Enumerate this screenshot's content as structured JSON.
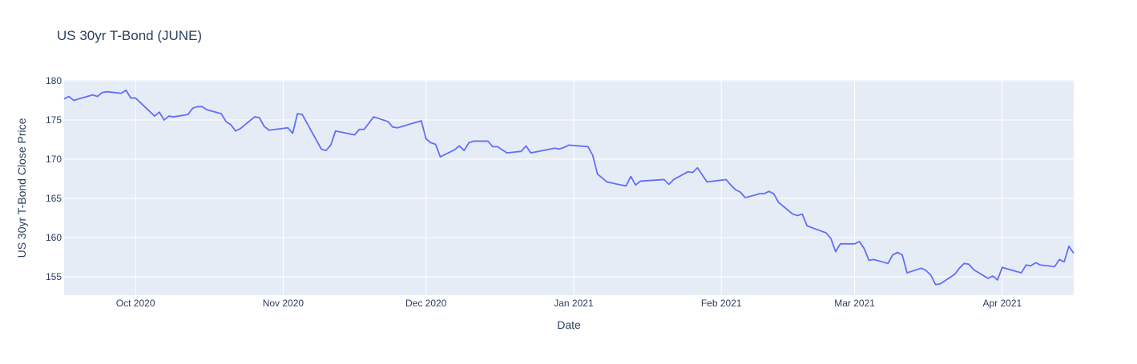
{
  "chart_data": {
    "type": "line",
    "title": "US 30yr T-Bond (JUNE)",
    "x_label": "Date",
    "y_label": "US 30yr T-Bond Close Price",
    "xlim": [
      0,
      212
    ],
    "ylim": [
      152.65,
      180.1
    ],
    "xticks": [
      {
        "value": 15,
        "label": "Oct 2020"
      },
      {
        "value": 46,
        "label": "Nov 2020"
      },
      {
        "value": 76,
        "label": "Dec 2020"
      },
      {
        "value": 107,
        "label": "Jan 2021"
      },
      {
        "value": 138,
        "label": "Feb 2021"
      },
      {
        "value": 166,
        "label": "Mar 2021"
      },
      {
        "value": 197,
        "label": "Apr 2021"
      }
    ],
    "yticks": [
      155,
      160,
      165,
      170,
      175,
      180
    ],
    "grid": true,
    "series": [
      {
        "color": "#636efa",
        "x": [
          0,
          1,
          2,
          6,
          7,
          8,
          9,
          12,
          13,
          14,
          15,
          19,
          20,
          21,
          22,
          23,
          26,
          27,
          28,
          29,
          30,
          33,
          34,
          35,
          36,
          37,
          40,
          41,
          42,
          43,
          47,
          48,
          49,
          50,
          54,
          55,
          56,
          57,
          61,
          62,
          63,
          65,
          68,
          69,
          70,
          75,
          76,
          77,
          78,
          79,
          82,
          83,
          84,
          85,
          86,
          89,
          90,
          91,
          92,
          93,
          96,
          97,
          98,
          103,
          104,
          105,
          106,
          110,
          111,
          112,
          114,
          117,
          118,
          119,
          120,
          121,
          126,
          127,
          128,
          131,
          132,
          133,
          135,
          139,
          140,
          141,
          142,
          143,
          145,
          146,
          147,
          148,
          149,
          150,
          153,
          154,
          155,
          156,
          160,
          161,
          162,
          163,
          166,
          167,
          168,
          169,
          170,
          173,
          174,
          175,
          176,
          177,
          180,
          181,
          182,
          183,
          184,
          187,
          188,
          189,
          190,
          191,
          194,
          195,
          196,
          197,
          201,
          202,
          203,
          204,
          205,
          208,
          209,
          210,
          211,
          212
        ],
        "values": [
          177.7,
          178.0,
          177.5,
          178.2,
          178.0,
          178.5,
          178.6,
          178.4,
          178.8,
          177.8,
          177.8,
          175.5,
          176.0,
          175.0,
          175.5,
          175.4,
          175.7,
          176.5,
          176.7,
          176.7,
          176.3,
          175.8,
          174.8,
          174.4,
          173.6,
          173.9,
          175.4,
          175.3,
          174.2,
          173.7,
          174.0,
          173.3,
          175.8,
          175.7,
          171.3,
          171.1,
          171.8,
          173.6,
          173.1,
          173.8,
          173.8,
          175.4,
          174.8,
          174.1,
          174.0,
          174.9,
          172.6,
          172.1,
          171.9,
          170.3,
          171.2,
          171.7,
          171.1,
          172.1,
          172.3,
          172.3,
          171.6,
          171.6,
          171.2,
          170.8,
          171.0,
          171.7,
          170.8,
          171.4,
          171.3,
          171.5,
          171.8,
          171.6,
          170.5,
          168.1,
          167.1,
          166.7,
          166.6,
          167.8,
          166.7,
          167.2,
          167.4,
          166.8,
          167.4,
          168.4,
          168.3,
          168.9,
          167.1,
          167.4,
          166.7,
          166.1,
          165.8,
          165.1,
          165.4,
          165.6,
          165.6,
          165.9,
          165.6,
          164.5,
          163.0,
          162.8,
          163.0,
          161.5,
          160.6,
          159.9,
          158.2,
          159.2,
          159.2,
          159.5,
          158.6,
          157.1,
          157.2,
          156.7,
          157.8,
          158.1,
          157.8,
          155.5,
          156.1,
          155.8,
          155.2,
          154.0,
          154.1,
          155.3,
          156.1,
          156.7,
          156.6,
          155.9,
          154.8,
          155.1,
          154.6,
          156.2,
          155.5,
          156.5,
          156.4,
          156.8,
          156.5,
          156.3,
          157.2,
          156.9,
          158.9,
          158.0
        ]
      }
    ]
  }
}
